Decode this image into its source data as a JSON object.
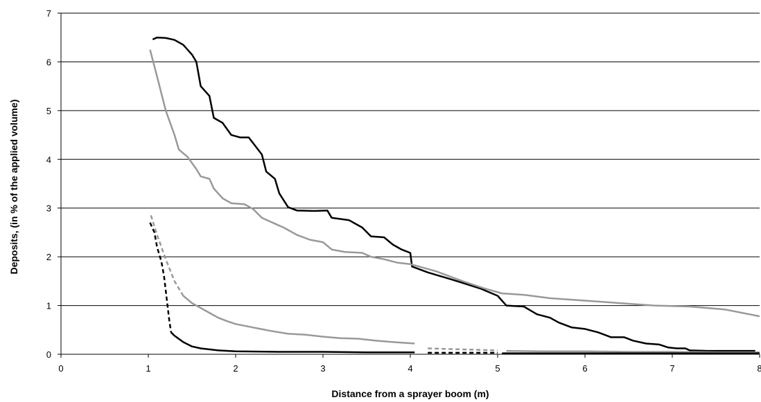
{
  "chart_data": {
    "type": "line",
    "title": "",
    "xlabel": "Distance from a sprayer boom (m)",
    "ylabel": "Deposits, (in %  of the applied volume)",
    "xlim": [
      0,
      8
    ],
    "ylim": [
      0,
      7
    ],
    "x_ticks": [
      0,
      1,
      2,
      3,
      4,
      5,
      6,
      7,
      8
    ],
    "y_ticks": [
      0,
      1,
      2,
      3,
      4,
      5,
      6,
      7
    ],
    "grid": "horizontal",
    "legend": "none",
    "series": [
      {
        "color": "#000000",
        "style": "solid",
        "points": [
          [
            1.05,
            6.46
          ],
          [
            1.1,
            6.5
          ],
          [
            1.2,
            6.49
          ],
          [
            1.3,
            6.45
          ],
          [
            1.4,
            6.35
          ],
          [
            1.5,
            6.15
          ],
          [
            1.55,
            6.0
          ],
          [
            1.6,
            5.5
          ],
          [
            1.7,
            5.3
          ],
          [
            1.75,
            4.85
          ],
          [
            1.85,
            4.75
          ],
          [
            1.95,
            4.5
          ],
          [
            2.05,
            4.45
          ],
          [
            2.15,
            4.45
          ],
          [
            2.3,
            4.1
          ],
          [
            2.35,
            3.75
          ],
          [
            2.45,
            3.6
          ],
          [
            2.5,
            3.3
          ],
          [
            2.6,
            3.02
          ],
          [
            2.7,
            2.95
          ],
          [
            2.9,
            2.94
          ],
          [
            3.05,
            2.95
          ],
          [
            3.1,
            2.8
          ],
          [
            3.3,
            2.75
          ],
          [
            3.45,
            2.6
          ],
          [
            3.55,
            2.42
          ],
          [
            3.7,
            2.4
          ],
          [
            3.8,
            2.25
          ],
          [
            3.9,
            2.15
          ],
          [
            4.0,
            2.08
          ],
          [
            4.02,
            1.8
          ],
          [
            4.2,
            1.68
          ],
          [
            4.5,
            1.52
          ],
          [
            4.8,
            1.35
          ],
          [
            5.0,
            1.2
          ],
          [
            5.1,
            1.0
          ],
          [
            5.3,
            0.98
          ],
          [
            5.45,
            0.82
          ],
          [
            5.6,
            0.75
          ],
          [
            5.7,
            0.65
          ],
          [
            5.85,
            0.55
          ],
          [
            6.0,
            0.52
          ],
          [
            6.15,
            0.45
          ],
          [
            6.3,
            0.35
          ],
          [
            6.45,
            0.35
          ],
          [
            6.55,
            0.28
          ],
          [
            6.7,
            0.22
          ],
          [
            6.85,
            0.2
          ],
          [
            6.95,
            0.14
          ],
          [
            7.05,
            0.12
          ],
          [
            7.15,
            0.12
          ],
          [
            7.2,
            0.08
          ],
          [
            7.4,
            0.07
          ],
          [
            7.95,
            0.07
          ]
        ]
      },
      {
        "color": "#999999",
        "style": "solid",
        "points": [
          [
            1.02,
            6.25
          ],
          [
            1.1,
            5.7
          ],
          [
            1.2,
            5.0
          ],
          [
            1.3,
            4.5
          ],
          [
            1.35,
            4.2
          ],
          [
            1.45,
            4.05
          ],
          [
            1.55,
            3.8
          ],
          [
            1.6,
            3.65
          ],
          [
            1.7,
            3.6
          ],
          [
            1.75,
            3.4
          ],
          [
            1.85,
            3.2
          ],
          [
            1.95,
            3.1
          ],
          [
            2.1,
            3.08
          ],
          [
            2.2,
            2.98
          ],
          [
            2.3,
            2.8
          ],
          [
            2.45,
            2.68
          ],
          [
            2.55,
            2.6
          ],
          [
            2.7,
            2.45
          ],
          [
            2.85,
            2.35
          ],
          [
            3.0,
            2.3
          ],
          [
            3.1,
            2.15
          ],
          [
            3.25,
            2.1
          ],
          [
            3.45,
            2.08
          ],
          [
            3.55,
            2.0
          ],
          [
            3.7,
            1.95
          ],
          [
            3.85,
            1.88
          ],
          [
            4.0,
            1.85
          ],
          [
            4.3,
            1.7
          ],
          [
            4.6,
            1.5
          ],
          [
            4.85,
            1.35
          ],
          [
            5.05,
            1.25
          ],
          [
            5.3,
            1.22
          ],
          [
            5.6,
            1.15
          ],
          [
            6.0,
            1.1
          ],
          [
            6.4,
            1.05
          ],
          [
            6.8,
            1.0
          ],
          [
            7.2,
            0.98
          ],
          [
            7.6,
            0.92
          ],
          [
            8.0,
            0.78
          ]
        ]
      },
      {
        "color": "#999999",
        "style": "mixed",
        "dashed_until": 1.4,
        "points": [
          [
            1.03,
            2.85
          ],
          [
            1.1,
            2.45
          ],
          [
            1.2,
            1.95
          ],
          [
            1.3,
            1.5
          ],
          [
            1.4,
            1.2
          ],
          [
            1.5,
            1.05
          ],
          [
            1.6,
            0.95
          ],
          [
            1.7,
            0.85
          ],
          [
            1.8,
            0.75
          ],
          [
            1.9,
            0.68
          ],
          [
            2.0,
            0.62
          ],
          [
            2.2,
            0.55
          ],
          [
            2.4,
            0.48
          ],
          [
            2.6,
            0.42
          ],
          [
            2.8,
            0.4
          ],
          [
            3.0,
            0.36
          ],
          [
            3.2,
            0.33
          ],
          [
            3.4,
            0.32
          ],
          [
            3.6,
            0.28
          ],
          [
            3.8,
            0.25
          ],
          [
            4.05,
            0.22
          ]
        ]
      },
      {
        "color": "#999999",
        "style": "dashed",
        "points": [
          [
            4.2,
            0.12
          ],
          [
            4.6,
            0.1
          ],
          [
            5.0,
            0.08
          ]
        ]
      },
      {
        "color": "#999999",
        "style": "solid",
        "points": [
          [
            5.1,
            0.07
          ],
          [
            5.5,
            0.06
          ],
          [
            6.0,
            0.06
          ],
          [
            6.5,
            0.05
          ],
          [
            7.0,
            0.05
          ],
          [
            7.5,
            0.04
          ],
          [
            8.0,
            0.04
          ]
        ]
      },
      {
        "color": "#000000",
        "style": "mixed",
        "dashed_until": 1.28,
        "points": [
          [
            1.02,
            2.7
          ],
          [
            1.07,
            2.5
          ],
          [
            1.1,
            2.2
          ],
          [
            1.15,
            1.9
          ],
          [
            1.18,
            1.6
          ],
          [
            1.2,
            1.3
          ],
          [
            1.22,
            1.0
          ],
          [
            1.24,
            0.7
          ],
          [
            1.26,
            0.45
          ],
          [
            1.3,
            0.38
          ],
          [
            1.4,
            0.25
          ],
          [
            1.5,
            0.16
          ],
          [
            1.6,
            0.12
          ],
          [
            1.8,
            0.08
          ],
          [
            2.0,
            0.06
          ],
          [
            2.5,
            0.05
          ],
          [
            3.0,
            0.05
          ],
          [
            3.5,
            0.04
          ],
          [
            4.05,
            0.04
          ]
        ]
      },
      {
        "color": "#000000",
        "style": "dashed",
        "points": [
          [
            4.2,
            0.03
          ],
          [
            5.0,
            0.03
          ]
        ]
      },
      {
        "color": "#000000",
        "style": "solid",
        "points": [
          [
            5.05,
            0.02
          ],
          [
            6.0,
            0.02
          ],
          [
            7.0,
            0.02
          ],
          [
            8.0,
            0.02
          ]
        ]
      }
    ]
  }
}
